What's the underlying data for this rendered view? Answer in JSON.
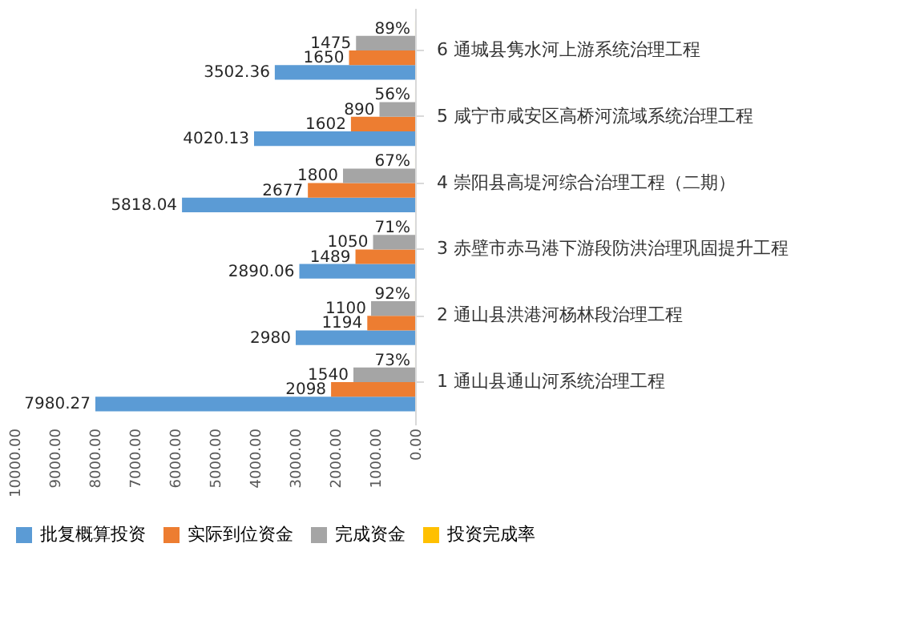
{
  "chart_data": {
    "type": "bar",
    "orientation": "horizontal",
    "categories": [
      "6 通城县隽水河上游系统治理工程",
      "5 咸宁市咸安区高桥河流域系统治理工程",
      "4 崇阳县高堤河综合治理工程（二期）",
      "3 赤壁市赤马港下游段防洪治理巩固提升工程",
      "2 通山县洪港河杨林段治理工程",
      "1 通山县通山河系统治理工程"
    ],
    "series": [
      {
        "name": "批复概算投资",
        "color": "#5b9bd5",
        "values": [
          3502.36,
          4020.13,
          5818.04,
          2890.06,
          2980,
          7980.27
        ]
      },
      {
        "name": "实际到位资金",
        "color": "#ed7d31",
        "values": [
          1650,
          1602,
          2677,
          1489,
          1194,
          2098
        ]
      },
      {
        "name": "完成资金",
        "color": "#a5a5a5",
        "values": [
          1475,
          890,
          1800,
          1050,
          1100,
          1540
        ]
      },
      {
        "name": "投资完成率",
        "color": "#ffc000",
        "values": [
          0.89,
          0.56,
          0.67,
          0.71,
          0.92,
          0.73
        ],
        "value_labels": [
          "89%",
          "56%",
          "67%",
          "71%",
          "92%",
          "73%"
        ]
      }
    ],
    "data_labels": true,
    "xlim": [
      10000,
      0
    ],
    "xticks": [
      {
        "value": 0,
        "label": "0.00"
      },
      {
        "value": 1000,
        "label": "1000.00"
      },
      {
        "value": 2000,
        "label": "2000.00"
      },
      {
        "value": 3000,
        "label": "3000.00"
      },
      {
        "value": 4000,
        "label": "4000.00"
      },
      {
        "value": 5000,
        "label": "5000.00"
      },
      {
        "value": 6000,
        "label": "6000.00"
      },
      {
        "value": 7000,
        "label": "7000.00"
      },
      {
        "value": 8000,
        "label": "8000.00"
      },
      {
        "value": 9000,
        "label": "9000.00"
      },
      {
        "value": 10000,
        "label": "10000.00"
      }
    ],
    "grid": false,
    "legend": "bottom"
  }
}
